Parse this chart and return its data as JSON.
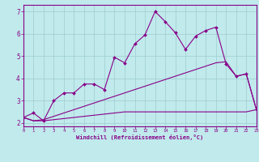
{
  "xlabel": "Windchill (Refroidissement éolien,°C)",
  "bg_color": "#c0eaec",
  "line_color": "#880088",
  "grid_color": "#9ecdd0",
  "x_ticks": [
    0,
    1,
    2,
    3,
    4,
    5,
    6,
    7,
    8,
    9,
    10,
    11,
    12,
    13,
    14,
    15,
    16,
    17,
    18,
    19,
    20,
    21,
    22,
    23
  ],
  "y_ticks": [
    2,
    3,
    4,
    5,
    6,
    7
  ],
  "xlim": [
    0,
    23
  ],
  "ylim": [
    1.85,
    7.3
  ],
  "series1_x": [
    0,
    1,
    2,
    3,
    4,
    5,
    6,
    7,
    8,
    9,
    10,
    11,
    12,
    13,
    14,
    15,
    16,
    17,
    18,
    19,
    20,
    21,
    22,
    23
  ],
  "series1_y": [
    2.25,
    2.45,
    2.1,
    3.0,
    3.35,
    3.35,
    3.75,
    3.75,
    3.5,
    4.95,
    4.7,
    5.55,
    5.95,
    7.0,
    6.55,
    6.05,
    5.3,
    5.9,
    6.15,
    6.3,
    4.65,
    4.1,
    4.2,
    2.6
  ],
  "series2_x": [
    0,
    1,
    2,
    3,
    4,
    5,
    6,
    7,
    8,
    9,
    10,
    11,
    12,
    13,
    14,
    15,
    16,
    17,
    18,
    19,
    20,
    21,
    22,
    23
  ],
  "series2_y": [
    2.25,
    2.1,
    2.15,
    2.3,
    2.45,
    2.6,
    2.75,
    2.9,
    3.05,
    3.2,
    3.35,
    3.5,
    3.65,
    3.8,
    3.95,
    4.1,
    4.25,
    4.4,
    4.55,
    4.7,
    4.75,
    4.1,
    4.2,
    2.6
  ],
  "series3_x": [
    0,
    1,
    2,
    3,
    4,
    5,
    6,
    7,
    8,
    9,
    10,
    11,
    12,
    13,
    14,
    15,
    16,
    17,
    18,
    19,
    20,
    21,
    22,
    23
  ],
  "series3_y": [
    2.25,
    2.1,
    2.1,
    2.15,
    2.2,
    2.25,
    2.3,
    2.35,
    2.4,
    2.45,
    2.5,
    2.5,
    2.5,
    2.5,
    2.5,
    2.5,
    2.5,
    2.5,
    2.5,
    2.5,
    2.5,
    2.5,
    2.5,
    2.6
  ]
}
